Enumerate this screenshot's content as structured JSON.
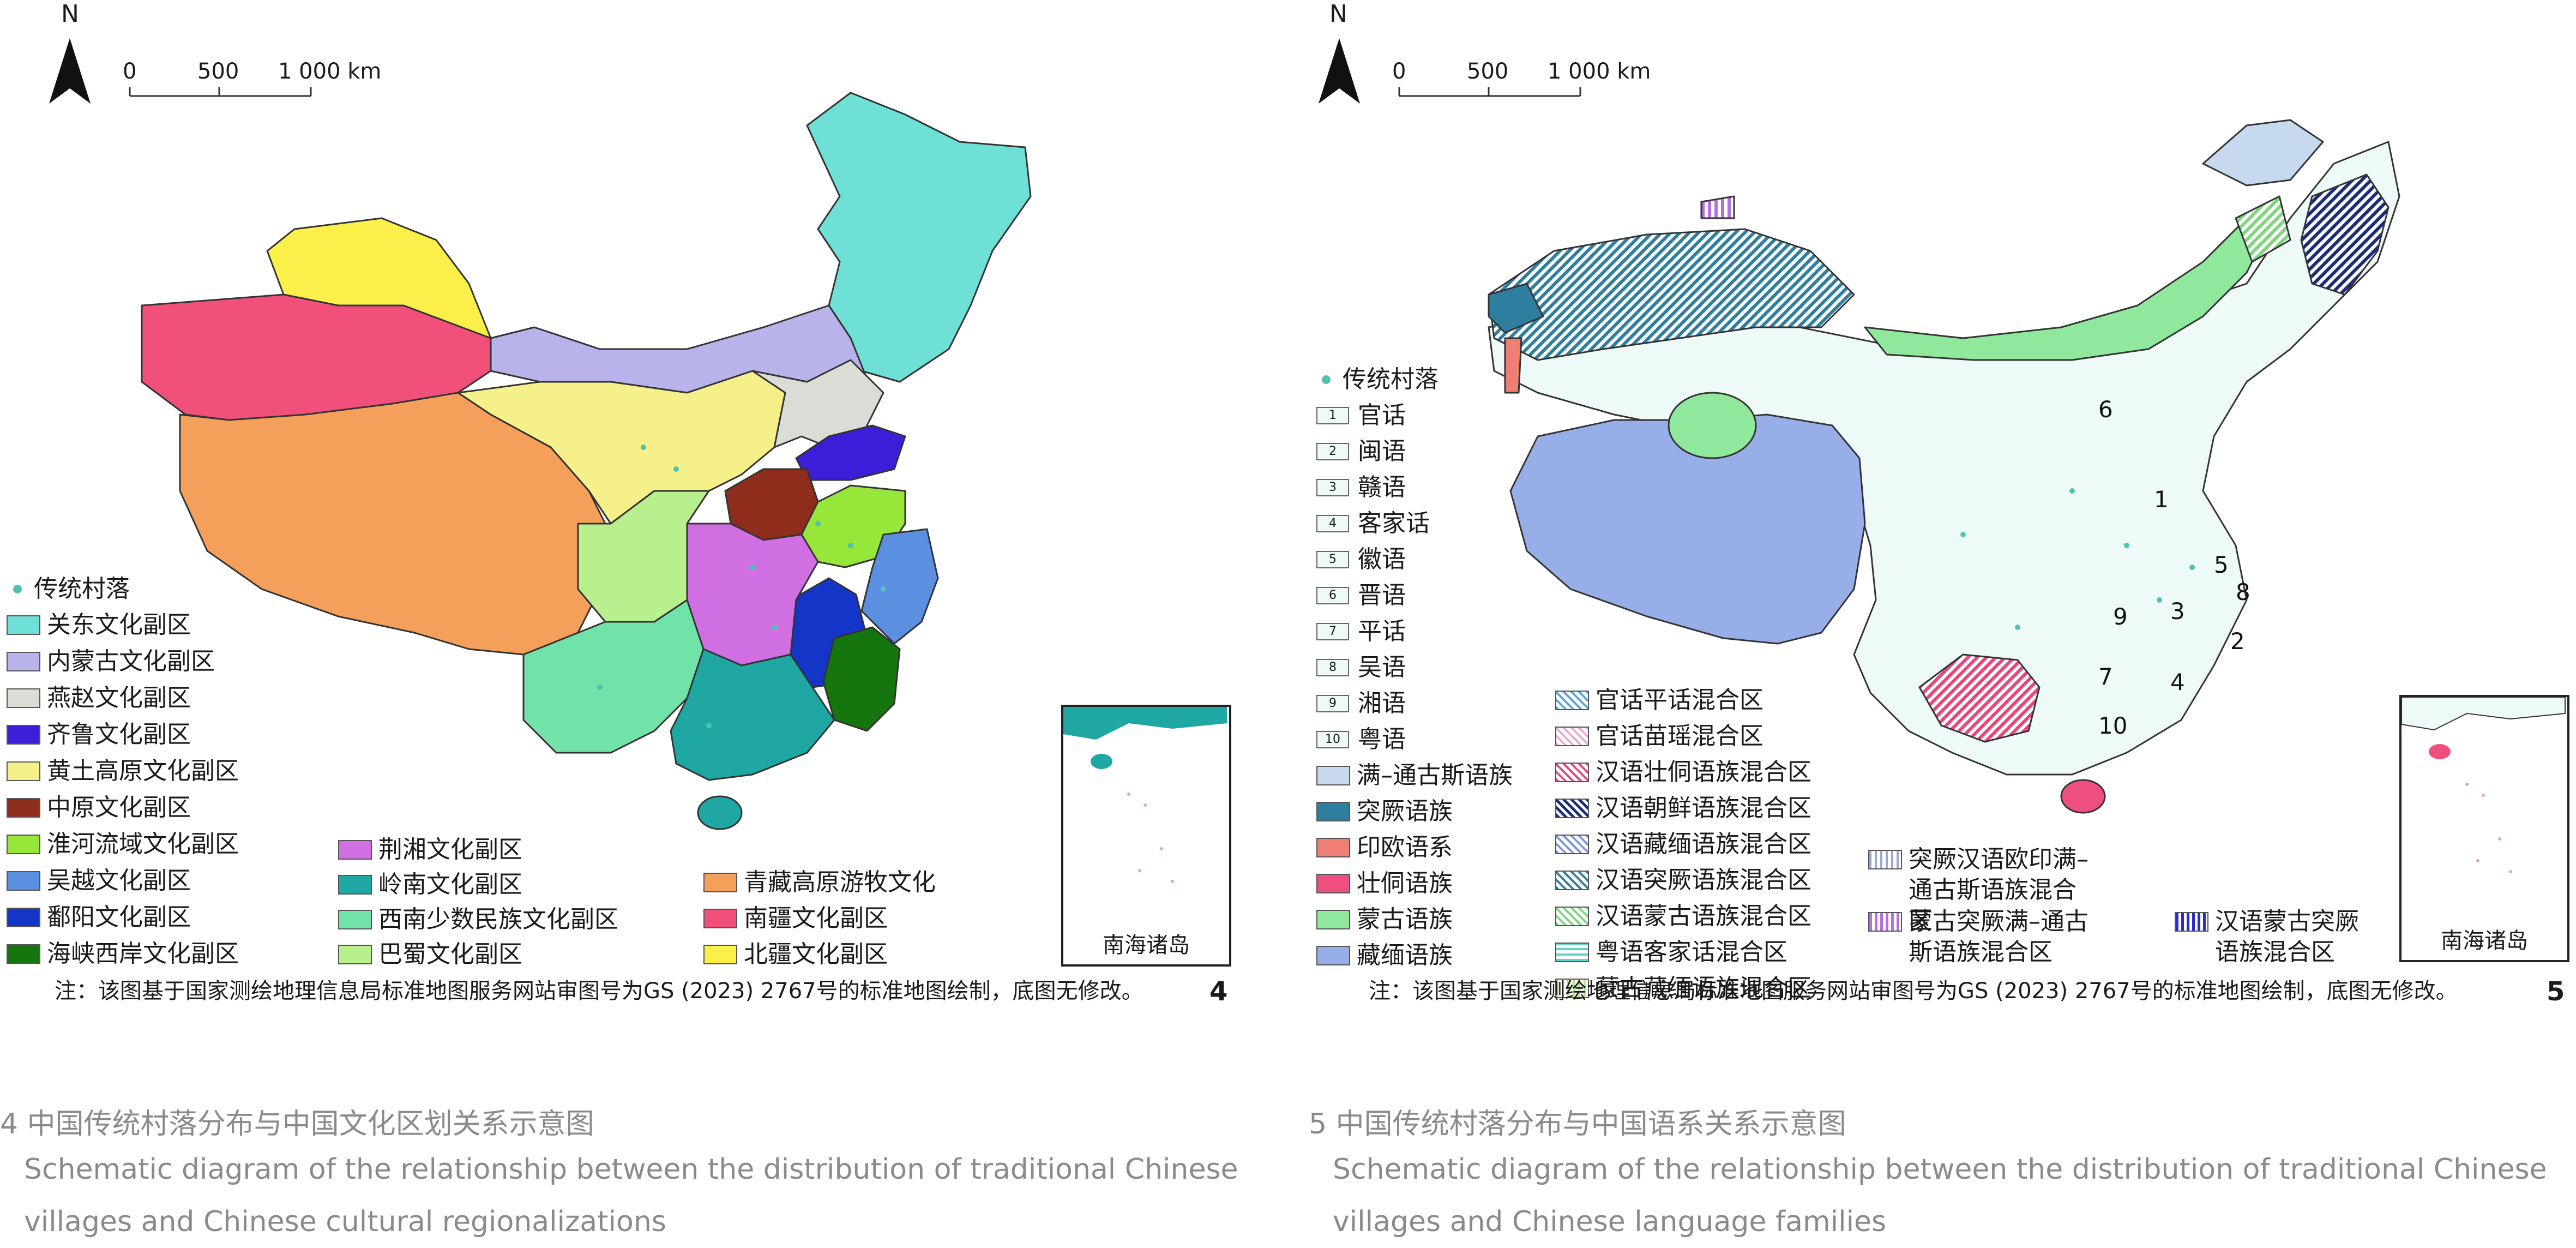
{
  "fig4": {
    "north": "N",
    "scale": {
      "t0": "0",
      "t1": "500",
      "t2": "1 000 km"
    },
    "legend_dot": "传统村落",
    "legend_col1": [
      {
        "label": "关东文化副区",
        "color": "#6fe0d6"
      },
      {
        "label": "内蒙古文化副区",
        "color": "#b9b3ec"
      },
      {
        "label": "燕赵文化副区",
        "color": "#dadcd6"
      },
      {
        "label": "齐鲁文化副区",
        "color": "#3b1fd8"
      },
      {
        "label": "黄土高原文化副区",
        "color": "#f5f08a"
      },
      {
        "label": "中原文化副区",
        "color": "#8e2d1c"
      },
      {
        "label": "淮河流域文化副区",
        "color": "#97e73a"
      },
      {
        "label": "吴越文化副区",
        "color": "#5b8fe0"
      },
      {
        "label": "鄱阳文化副区",
        "color": "#1436c8"
      },
      {
        "label": "海峡西岸文化副区",
        "color": "#15750f"
      }
    ],
    "legend_col2": [
      {
        "label": "荆湘文化副区",
        "color": "#cf6fe2"
      },
      {
        "label": "岭南文化副区",
        "color": "#1fa7a3"
      },
      {
        "label": "西南少数民族文化副区",
        "color": "#71e3a9"
      },
      {
        "label": "巴蜀文化副区",
        "color": "#b9f08e"
      }
    ],
    "legend_col3": [
      {
        "label": "青藏高原游牧文化",
        "color": "#f5a05a"
      },
      {
        "label": "南疆文化副区",
        "color": "#f0507a"
      },
      {
        "label": "北疆文化副区",
        "color": "#fbf04a"
      }
    ],
    "inset_label": "南海诸岛",
    "note": "注：该图基于国家测绘地理信息局标准地图服务网站审图号为GS (2023) 2767号的标准地图绘制，底图无修改。",
    "fignum": "4",
    "caption_zh": "4 中国传统村落分布与中国文化区划关系示意图",
    "caption_en": "Schematic diagram of the relationship between the distribution of traditional Chinese villages and Chinese cultural regionalizations"
  },
  "fig5": {
    "north": "N",
    "scale": {
      "t0": "0",
      "t1": "500",
      "t2": "1 000 km"
    },
    "legend_dot": "传统村落",
    "dialects": [
      {
        "num": "1",
        "label": "官话"
      },
      {
        "num": "2",
        "label": "闽语"
      },
      {
        "num": "3",
        "label": "赣语"
      },
      {
        "num": "4",
        "label": "客家话"
      },
      {
        "num": "5",
        "label": "徽语"
      },
      {
        "num": "6",
        "label": "晋语"
      },
      {
        "num": "7",
        "label": "平话"
      },
      {
        "num": "8",
        "label": "吴语"
      },
      {
        "num": "9",
        "label": "湘语"
      },
      {
        "num": "10",
        "label": "粤语"
      }
    ],
    "families": [
      {
        "label": "满–通古斯语族",
        "color": "#c7d9ef"
      },
      {
        "label": "突厥语族",
        "color": "#2e7f9f"
      },
      {
        "label": "印欧语系",
        "color": "#ef7f74"
      },
      {
        "label": "壮侗语族",
        "color": "#ee4f7e"
      },
      {
        "label": "蒙古语族",
        "color": "#8fe89b"
      },
      {
        "label": "藏缅语族",
        "color": "#98aee8"
      }
    ],
    "mixed1": [
      {
        "label": "官话平话混合区",
        "color": "#5aa7d9"
      },
      {
        "label": "官话苗瑶混合区",
        "color": "#f0a6d6"
      },
      {
        "label": "汉语壮侗语族混合区",
        "color": "#e8467a"
      },
      {
        "label": "汉语朝鲜语族混合区",
        "color": "#1c2c7a"
      },
      {
        "label": "汉语藏缅语族混合区",
        "color": "#7b97df"
      },
      {
        "label": "汉语突厥语族混合区",
        "color": "#2e7f9f"
      },
      {
        "label": "汉语蒙古语族混合区",
        "color": "#7ed67a"
      },
      {
        "label": "粤语客家话混合区",
        "color": "#5fd3c6"
      },
      {
        "label": "蒙古藏缅语族混合区",
        "color": "#b4e88e"
      }
    ],
    "mixed2": [
      {
        "label": "突厥汉语欧印满–通古斯语族混合区",
        "color": "#9aa8d8"
      },
      {
        "label": "蒙古突厥满–通古斯语族混合区",
        "color": "#b46fe0"
      }
    ],
    "mixed3": [
      {
        "label": "汉语蒙古突厥语族混合区",
        "color": "#2a2ad8"
      }
    ],
    "map_numbers": [
      "1",
      "2",
      "3",
      "4",
      "5",
      "6",
      "7",
      "8",
      "9",
      "10"
    ],
    "inset_label": "南海诸岛",
    "note": "注：该图基于国家测绘地理信息局标准地图服务网站审图号为GS (2023) 2767号的标准地图绘制，底图无修改。",
    "fignum": "5",
    "caption_zh": "5 中国传统村落分布与中国语系关系示意图",
    "caption_en": "Schematic diagram of the relationship between the distribution of traditional Chinese villages and Chinese language families"
  }
}
